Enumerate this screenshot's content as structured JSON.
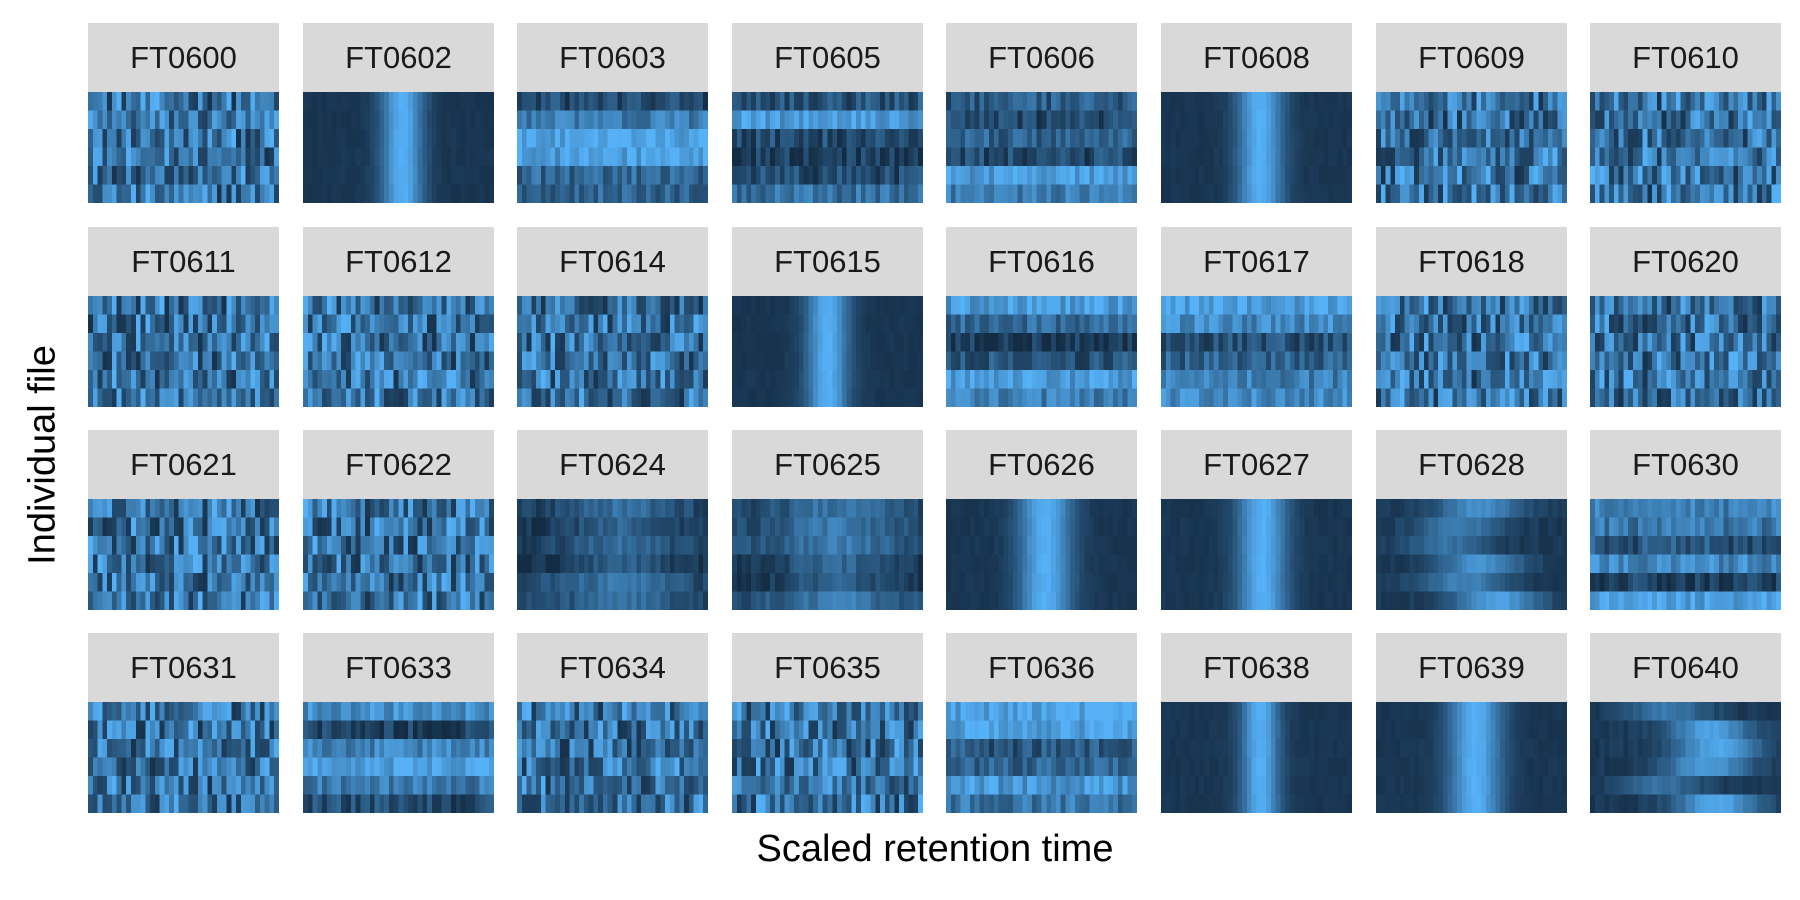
{
  "chart_data": {
    "type": "heatmap",
    "layout": "faceted small multiples, 8 columns x 4 rows",
    "xlabel": "Scaled retention time",
    "ylabel": "Individual file",
    "color_scale": {
      "low": "#132B43",
      "high": "#56B1F7"
    },
    "x_bins": 40,
    "rows_per_panel": 6,
    "axis_ticks": "none",
    "grid": false,
    "legend": "none",
    "panels": [
      {
        "name": "FT0600",
        "pattern": "noise"
      },
      {
        "name": "FT0602",
        "pattern": "peak",
        "center": 0.52,
        "width": 0.11
      },
      {
        "name": "FT0603",
        "pattern": "rows"
      },
      {
        "name": "FT0605",
        "pattern": "rows"
      },
      {
        "name": "FT0606",
        "pattern": "rows"
      },
      {
        "name": "FT0608",
        "pattern": "peak",
        "center": 0.52,
        "width": 0.12
      },
      {
        "name": "FT0609",
        "pattern": "noise"
      },
      {
        "name": "FT0610",
        "pattern": "noise"
      },
      {
        "name": "FT0611",
        "pattern": "noise"
      },
      {
        "name": "FT0612",
        "pattern": "noise"
      },
      {
        "name": "FT0614",
        "pattern": "noise"
      },
      {
        "name": "FT0615",
        "pattern": "peak",
        "center": 0.5,
        "width": 0.11
      },
      {
        "name": "FT0616",
        "pattern": "rows"
      },
      {
        "name": "FT0617",
        "pattern": "rows"
      },
      {
        "name": "FT0618",
        "pattern": "noise"
      },
      {
        "name": "FT0620",
        "pattern": "noise"
      },
      {
        "name": "FT0621",
        "pattern": "noise"
      },
      {
        "name": "FT0622",
        "pattern": "noise"
      },
      {
        "name": "FT0624",
        "pattern": "smooth"
      },
      {
        "name": "FT0625",
        "pattern": "smooth"
      },
      {
        "name": "FT0626",
        "pattern": "peak",
        "center": 0.52,
        "width": 0.14
      },
      {
        "name": "FT0627",
        "pattern": "peak",
        "center": 0.53,
        "width": 0.13
      },
      {
        "name": "FT0628",
        "pattern": "shifted"
      },
      {
        "name": "FT0630",
        "pattern": "rows"
      },
      {
        "name": "FT0631",
        "pattern": "noise"
      },
      {
        "name": "FT0633",
        "pattern": "rows"
      },
      {
        "name": "FT0634",
        "pattern": "noise"
      },
      {
        "name": "FT0635",
        "pattern": "noise"
      },
      {
        "name": "FT0636",
        "pattern": "rows"
      },
      {
        "name": "FT0638",
        "pattern": "peak",
        "center": 0.52,
        "width": 0.1
      },
      {
        "name": "FT0639",
        "pattern": "peak",
        "center": 0.52,
        "width": 0.14
      },
      {
        "name": "FT0640",
        "pattern": "shifted"
      }
    ]
  }
}
